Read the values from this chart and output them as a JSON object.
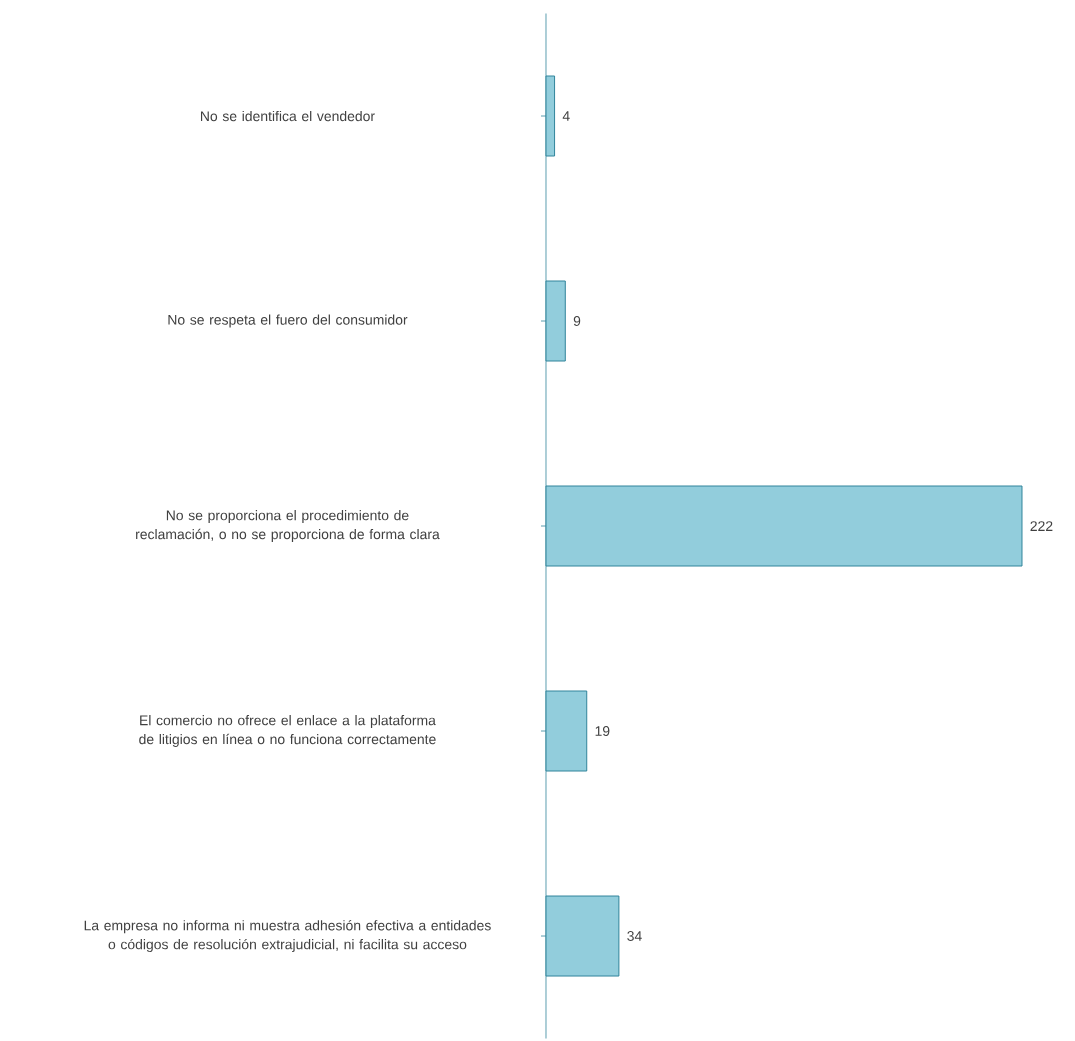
{
  "chart_data": {
    "type": "bar",
    "orientation": "horizontal",
    "categories": [
      "No se identifica el vendedor",
      "No se respeta el fuero del consumidor",
      "No se proporciona el procedimiento de reclamación, o no se proporciona de forma clara",
      "El comercio no ofrece el enlace a la plataforma de litigios en línea o no funciona correctamente",
      "La empresa no informa ni muestra adhesión efectiva a entidades o códigos de resolución extrajudicial, ni facilita su acceso"
    ],
    "values": [
      4,
      9,
      222,
      19,
      34
    ],
    "color": "#92cddc",
    "data_labels": true
  }
}
